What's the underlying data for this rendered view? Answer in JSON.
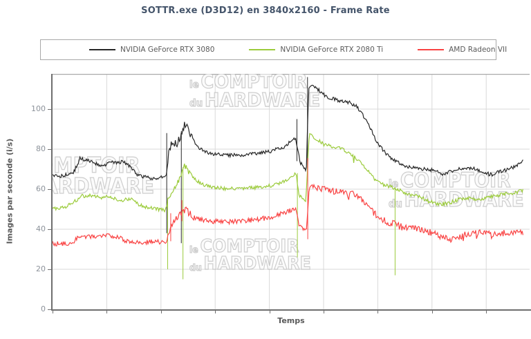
{
  "title": "SOTTR.exe (D3D12) en 3840x2160 - Frame Rate",
  "legend": {
    "items": [
      {
        "label": "NVIDIA GeForce RTX 3080",
        "color": "#262626"
      },
      {
        "label": "NVIDIA GeForce RTX 2080 Ti",
        "color": "#9bcb3b"
      },
      {
        "label": "AMD Radeon VII",
        "color": "#f94242"
      }
    ]
  },
  "watermark": {
    "small_top": "le",
    "big_top": "COMPTOIR",
    "small_bottom": "du",
    "big_bottom": "HARDWARE"
  },
  "colors": {
    "title": "#44546a",
    "axis_title": "#595959",
    "tick_label": "#8c929a",
    "gridline": "#d9d9d9",
    "plot_border": "#a9a9a9",
    "axis_line": "#6e6e6e"
  },
  "chart_data": {
    "type": "line",
    "title": "SOTTR.exe (D3D12) en 3840x2160 - Frame Rate",
    "xlabel": "Temps",
    "ylabel": "Images par seconde (i/s)",
    "ylim": [
      0,
      117.6
    ],
    "y_ticks": [
      0,
      20,
      40,
      60,
      80,
      100
    ],
    "x_tick_labels": [],
    "grid": true,
    "legend_position": "top",
    "x_unit": "fraction of benchmark run",
    "series": [
      {
        "name": "NVIDIA GeForce RTX 3080",
        "color": "#262626",
        "noise": 0.9,
        "noise_zones": [
          [
            0.244,
            0.3,
            1.9
          ]
        ],
        "hairs": null,
        "keypoints": [
          [
            0,
            67
          ],
          [
            0.02,
            66.5
          ],
          [
            0.045,
            68.5
          ],
          [
            0.058,
            75.3
          ],
          [
            0.07,
            74.5
          ],
          [
            0.09,
            73
          ],
          [
            0.105,
            71.8
          ],
          [
            0.125,
            73.3
          ],
          [
            0.148,
            73.6
          ],
          [
            0.16,
            72.5
          ],
          [
            0.17,
            69.5
          ],
          [
            0.185,
            66.5
          ],
          [
            0.21,
            65.6
          ],
          [
            0.235,
            65.8
          ],
          [
            0.242,
            66.5
          ],
          [
            0.247,
            80.5
          ],
          [
            0.252,
            82
          ],
          [
            0.258,
            82.5
          ],
          [
            0.265,
            83
          ],
          [
            0.271,
            86
          ],
          [
            0.276,
            88.5
          ],
          [
            0.281,
            92.5
          ],
          [
            0.285,
            91
          ],
          [
            0.291,
            88.5
          ],
          [
            0.297,
            85.5
          ],
          [
            0.305,
            82
          ],
          [
            0.315,
            80
          ],
          [
            0.33,
            78
          ],
          [
            0.35,
            77.3
          ],
          [
            0.38,
            77
          ],
          [
            0.41,
            77.3
          ],
          [
            0.44,
            78
          ],
          [
            0.465,
            79
          ],
          [
            0.49,
            81
          ],
          [
            0.505,
            83.5
          ],
          [
            0.516,
            85.8
          ],
          [
            0.521,
            80
          ],
          [
            0.526,
            73
          ],
          [
            0.533,
            71.5
          ],
          [
            0.539,
            69.5
          ],
          [
            0.544,
            111
          ],
          [
            0.555,
            111.5
          ],
          [
            0.565,
            109.5
          ],
          [
            0.578,
            107
          ],
          [
            0.59,
            105.5
          ],
          [
            0.605,
            104.5
          ],
          [
            0.618,
            103.8
          ],
          [
            0.632,
            103.2
          ],
          [
            0.645,
            101.5
          ],
          [
            0.655,
            98.5
          ],
          [
            0.665,
            94.5
          ],
          [
            0.675,
            90.5
          ],
          [
            0.688,
            84
          ],
          [
            0.7,
            80
          ],
          [
            0.71,
            77.5
          ],
          [
            0.725,
            74.5
          ],
          [
            0.745,
            72
          ],
          [
            0.765,
            70.8
          ],
          [
            0.79,
            70
          ],
          [
            0.812,
            69.3
          ],
          [
            0.825,
            67.5
          ],
          [
            0.838,
            68.3
          ],
          [
            0.855,
            69.8
          ],
          [
            0.875,
            70.5
          ],
          [
            0.895,
            70.2
          ],
          [
            0.912,
            68.5
          ],
          [
            0.932,
            67.2
          ],
          [
            0.95,
            68.8
          ],
          [
            0.968,
            69.8
          ],
          [
            0.982,
            71.5
          ],
          [
            1,
            74.3
          ]
        ],
        "spikes": [
          [
            0.2425,
            38,
            88
          ],
          [
            0.2735,
            33,
            89
          ],
          [
            0.519,
            74,
            95
          ],
          [
            0.5415,
            69,
            116
          ]
        ]
      },
      {
        "name": "NVIDIA GeForce RTX 2080 Ti",
        "color": "#9bcb3b",
        "noise": 0.9,
        "noise_zones": [
          [
            0.244,
            0.3,
            1.7
          ]
        ],
        "hairs": {
          "range": [
            0.56,
            0.67
          ],
          "p": 0.06,
          "len": 4
        },
        "keypoints": [
          [
            0,
            50.3
          ],
          [
            0.025,
            50.8
          ],
          [
            0.045,
            53.5
          ],
          [
            0.062,
            56.5
          ],
          [
            0.08,
            56.8
          ],
          [
            0.1,
            55.8
          ],
          [
            0.118,
            56.4
          ],
          [
            0.132,
            55.2
          ],
          [
            0.142,
            53.8
          ],
          [
            0.155,
            55.3
          ],
          [
            0.168,
            54.8
          ],
          [
            0.182,
            52.3
          ],
          [
            0.2,
            50.8
          ],
          [
            0.225,
            50
          ],
          [
            0.24,
            49.6
          ],
          [
            0.247,
            56
          ],
          [
            0.256,
            60
          ],
          [
            0.266,
            63.5
          ],
          [
            0.272,
            65.5
          ],
          [
            0.279,
            71.5
          ],
          [
            0.284,
            70.5
          ],
          [
            0.295,
            67
          ],
          [
            0.308,
            64
          ],
          [
            0.322,
            62
          ],
          [
            0.345,
            60.8
          ],
          [
            0.375,
            60.2
          ],
          [
            0.405,
            60.3
          ],
          [
            0.435,
            60.8
          ],
          [
            0.465,
            61.8
          ],
          [
            0.49,
            63.8
          ],
          [
            0.505,
            66
          ],
          [
            0.517,
            68.3
          ],
          [
            0.523,
            57
          ],
          [
            0.53,
            55.5
          ],
          [
            0.538,
            54
          ],
          [
            0.545,
            87.3
          ],
          [
            0.558,
            85.5
          ],
          [
            0.572,
            83
          ],
          [
            0.585,
            82
          ],
          [
            0.6,
            81
          ],
          [
            0.615,
            80.3
          ],
          [
            0.628,
            78
          ],
          [
            0.642,
            75.8
          ],
          [
            0.655,
            73
          ],
          [
            0.668,
            69.5
          ],
          [
            0.682,
            65.5
          ],
          [
            0.696,
            62.8
          ],
          [
            0.712,
            61.5
          ],
          [
            0.728,
            60.5
          ],
          [
            0.742,
            58.8
          ],
          [
            0.76,
            57.3
          ],
          [
            0.778,
            56.5
          ],
          [
            0.795,
            54.3
          ],
          [
            0.812,
            53
          ],
          [
            0.828,
            52.5
          ],
          [
            0.845,
            53.3
          ],
          [
            0.862,
            54.8
          ],
          [
            0.882,
            55.4
          ],
          [
            0.9,
            55
          ],
          [
            0.918,
            55.3
          ],
          [
            0.935,
            56.4
          ],
          [
            0.952,
            57.3
          ],
          [
            0.97,
            57.9
          ],
          [
            0.985,
            58.3
          ],
          [
            1,
            59.5
          ]
        ],
        "spikes": [
          [
            0.2445,
            20,
            54
          ],
          [
            0.277,
            15,
            71
          ],
          [
            0.52,
            26,
            68
          ],
          [
            0.7275,
            17,
            61
          ]
        ]
      },
      {
        "name": "AMD Radeon VII",
        "color": "#f94242",
        "noise": 1.2,
        "noise_zones": [
          [
            0.244,
            0.3,
            1.8
          ],
          [
            0.545,
            1.0,
            1.6
          ]
        ],
        "hairs": {
          "range": [
            0.545,
            1.0
          ],
          "p": 0.1,
          "len": 3
        },
        "keypoints": [
          [
            0,
            33
          ],
          [
            0.02,
            32.6
          ],
          [
            0.04,
            33.2
          ],
          [
            0.058,
            36.3
          ],
          [
            0.075,
            36
          ],
          [
            0.095,
            36.8
          ],
          [
            0.115,
            37.4
          ],
          [
            0.135,
            36.2
          ],
          [
            0.152,
            34.6
          ],
          [
            0.17,
            34
          ],
          [
            0.195,
            33.6
          ],
          [
            0.225,
            33.7
          ],
          [
            0.242,
            33.2
          ],
          [
            0.25,
            40
          ],
          [
            0.258,
            44
          ],
          [
            0.266,
            46.5
          ],
          [
            0.273,
            48
          ],
          [
            0.282,
            49.8
          ],
          [
            0.292,
            47.5
          ],
          [
            0.302,
            45.8
          ],
          [
            0.318,
            44.6
          ],
          [
            0.34,
            44
          ],
          [
            0.368,
            43.6
          ],
          [
            0.4,
            43.9
          ],
          [
            0.432,
            44.8
          ],
          [
            0.46,
            45.8
          ],
          [
            0.488,
            47.8
          ],
          [
            0.505,
            49.5
          ],
          [
            0.517,
            50.3
          ],
          [
            0.523,
            43
          ],
          [
            0.53,
            41
          ],
          [
            0.539,
            39.5
          ],
          [
            0.545,
            60.8
          ],
          [
            0.558,
            61.3
          ],
          [
            0.572,
            60.3
          ],
          [
            0.588,
            59.3
          ],
          [
            0.605,
            58.8
          ],
          [
            0.622,
            58.4
          ],
          [
            0.635,
            57.8
          ],
          [
            0.648,
            56.3
          ],
          [
            0.66,
            54
          ],
          [
            0.672,
            51
          ],
          [
            0.686,
            47.5
          ],
          [
            0.7,
            44.8
          ],
          [
            0.715,
            43.3
          ],
          [
            0.732,
            42.4
          ],
          [
            0.75,
            41.4
          ],
          [
            0.77,
            40.2
          ],
          [
            0.788,
            39.2
          ],
          [
            0.805,
            38.3
          ],
          [
            0.822,
            36.8
          ],
          [
            0.838,
            35.6
          ],
          [
            0.852,
            35.2
          ],
          [
            0.868,
            36.6
          ],
          [
            0.885,
            37.8
          ],
          [
            0.905,
            38.4
          ],
          [
            0.922,
            37.8
          ],
          [
            0.94,
            37.6
          ],
          [
            0.958,
            38
          ],
          [
            0.975,
            38.3
          ],
          [
            1,
            38.4
          ]
        ],
        "spikes": [
          [
            0.251,
            34,
            48
          ],
          [
            0.2745,
            44,
            54.5
          ],
          [
            0.542,
            35,
            75.5
          ]
        ]
      }
    ]
  }
}
